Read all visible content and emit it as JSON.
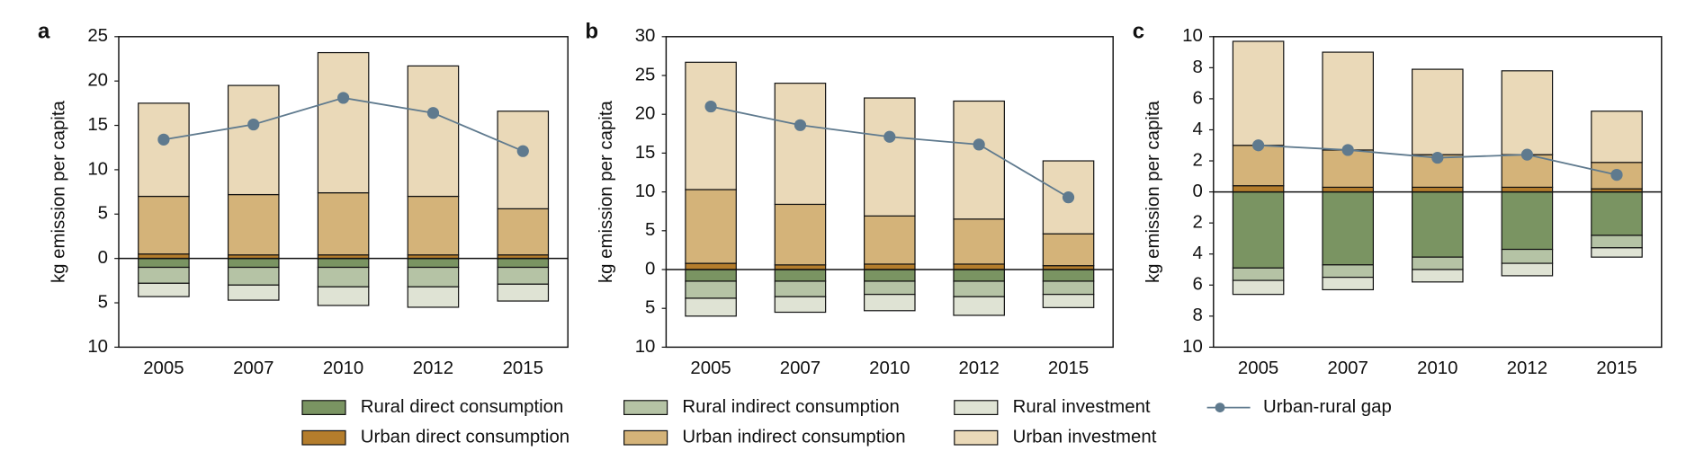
{
  "chart_data": [
    {
      "type": "bar",
      "panel": "a",
      "ylabel": "kg emission per capita",
      "categories": [
        "2005",
        "2007",
        "2010",
        "2012",
        "2015"
      ],
      "ylim": [
        -10,
        25
      ],
      "yticks": [
        {
          "value": -10,
          "label": "10"
        },
        {
          "value": -5,
          "label": "5"
        },
        0,
        5,
        10,
        15,
        20,
        25
      ],
      "series": [
        {
          "name": "Rural direct consumption",
          "color": "#7a9462",
          "values": [
            -1.0,
            -1.0,
            -1.0,
            -1.0,
            -1.0
          ]
        },
        {
          "name": "Rural indirect consumption",
          "color": "#b5c3a5",
          "values": [
            -1.8,
            -2.0,
            -2.2,
            -2.2,
            -1.9
          ]
        },
        {
          "name": "Rural investment",
          "color": "#dfe3d4",
          "values": [
            -1.5,
            -1.7,
            -2.1,
            -2.3,
            -1.9
          ]
        },
        {
          "name": "Urban direct consumption",
          "color": "#b47d2c",
          "values": [
            0.5,
            0.4,
            0.4,
            0.4,
            0.4
          ]
        },
        {
          "name": "Urban indirect consumption",
          "color": "#d4b379",
          "values": [
            6.5,
            6.8,
            7.0,
            6.6,
            5.2
          ]
        },
        {
          "name": "Urban investment",
          "color": "#ead9b8",
          "values": [
            10.5,
            12.3,
            15.8,
            14.7,
            11.0
          ]
        },
        {
          "name": "Urban-rural gap",
          "type": "line",
          "color": "#5f7a8e",
          "values": [
            13.4,
            15.1,
            18.1,
            16.4,
            12.1
          ]
        }
      ]
    },
    {
      "type": "bar",
      "panel": "b",
      "ylabel": "kg emission per capita",
      "categories": [
        "2005",
        "2007",
        "2010",
        "2012",
        "2015"
      ],
      "ylim": [
        -10,
        30
      ],
      "yticks": [
        {
          "value": -10,
          "label": "10"
        },
        {
          "value": -5,
          "label": "5"
        },
        0,
        5,
        10,
        15,
        20,
        25,
        30
      ],
      "series": [
        {
          "name": "Rural direct consumption",
          "color": "#7a9462",
          "values": [
            -1.5,
            -1.5,
            -1.5,
            -1.5,
            -1.5
          ]
        },
        {
          "name": "Rural indirect consumption",
          "color": "#b5c3a5",
          "values": [
            -2.2,
            -2.0,
            -1.7,
            -2.0,
            -1.7
          ]
        },
        {
          "name": "Rural investment",
          "color": "#dfe3d4",
          "values": [
            -2.3,
            -2.0,
            -2.1,
            -2.4,
            -1.7
          ]
        },
        {
          "name": "Urban direct consumption",
          "color": "#b47d2c",
          "values": [
            0.8,
            0.6,
            0.7,
            0.7,
            0.5
          ]
        },
        {
          "name": "Urban indirect consumption",
          "color": "#d4b379",
          "values": [
            9.5,
            7.8,
            6.2,
            5.8,
            4.1
          ]
        },
        {
          "name": "Urban investment",
          "color": "#ead9b8",
          "values": [
            16.4,
            15.6,
            15.2,
            15.2,
            9.4
          ]
        },
        {
          "name": "Urban-rural gap",
          "type": "line",
          "color": "#5f7a8e",
          "values": [
            21.0,
            18.6,
            17.1,
            16.1,
            9.3
          ]
        }
      ]
    },
    {
      "type": "bar",
      "panel": "c",
      "ylabel": "kg emission per capita",
      "categories": [
        "2005",
        "2007",
        "2010",
        "2012",
        "2015"
      ],
      "ylim": [
        -10,
        10
      ],
      "yticks": [
        {
          "value": -10,
          "label": "10"
        },
        {
          "value": -8,
          "label": "8"
        },
        {
          "value": -6,
          "label": "6"
        },
        {
          "value": -4,
          "label": "4"
        },
        {
          "value": -2,
          "label": "2"
        },
        0,
        2,
        4,
        6,
        8,
        10
      ],
      "series": [
        {
          "name": "Rural direct consumption",
          "color": "#7a9462",
          "values": [
            -4.9,
            -4.7,
            -4.2,
            -3.7,
            -2.8
          ]
        },
        {
          "name": "Rural indirect consumption",
          "color": "#b5c3a5",
          "values": [
            -0.8,
            -0.8,
            -0.8,
            -0.9,
            -0.8
          ]
        },
        {
          "name": "Rural investment",
          "color": "#dfe3d4",
          "values": [
            -0.9,
            -0.8,
            -0.8,
            -0.8,
            -0.6
          ]
        },
        {
          "name": "Urban direct consumption",
          "color": "#b47d2c",
          "values": [
            0.4,
            0.3,
            0.3,
            0.3,
            0.2
          ]
        },
        {
          "name": "Urban indirect consumption",
          "color": "#d4b379",
          "values": [
            2.6,
            2.4,
            2.1,
            2.1,
            1.7
          ]
        },
        {
          "name": "Urban investment",
          "color": "#ead9b8",
          "values": [
            6.7,
            6.3,
            5.5,
            5.4,
            3.3
          ]
        },
        {
          "name": "Urban-rural gap",
          "type": "line",
          "color": "#5f7a8e",
          "values": [
            3.0,
            2.7,
            2.2,
            2.4,
            1.1
          ]
        }
      ]
    }
  ]
}
